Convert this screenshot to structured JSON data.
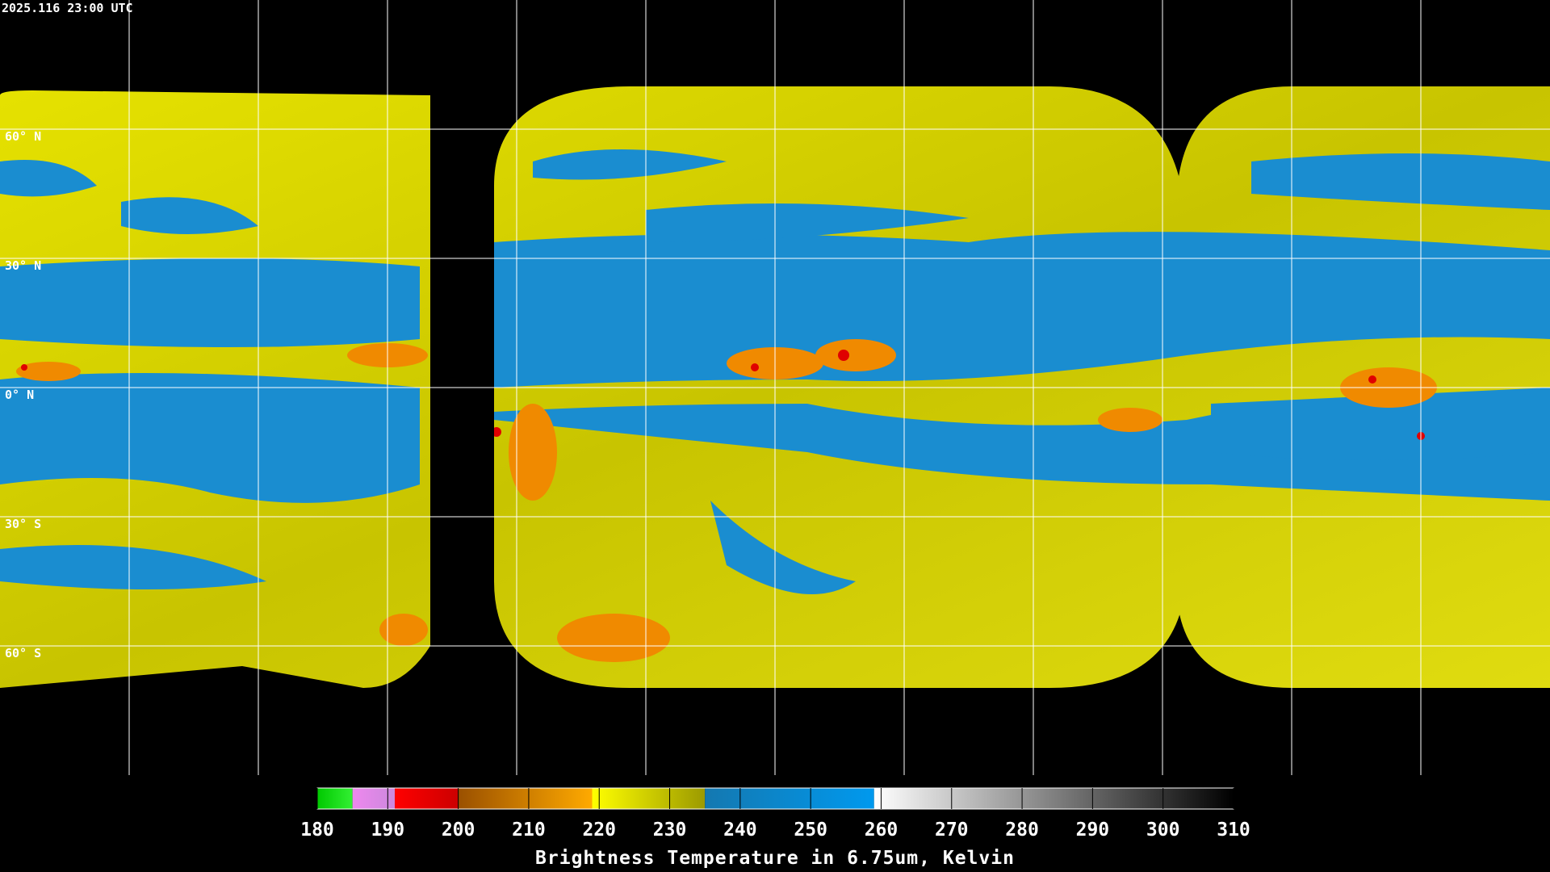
{
  "title": "2025.116 23:00 UTC",
  "latitude_labels": [
    "60° N",
    "30° N",
    "0° N",
    "30° S",
    "60° S"
  ],
  "colorbar": {
    "label": "Brightness Temperature in 6.75um, Kelvin",
    "range": [
      180,
      310
    ],
    "ticks": [
      180,
      190,
      200,
      210,
      220,
      230,
      240,
      250,
      260,
      270,
      280,
      290,
      300,
      310
    ],
    "segments": [
      {
        "from": 180,
        "to": 185,
        "colors": [
          "#00c800",
          "#33f033"
        ]
      },
      {
        "from": 185,
        "to": 191,
        "colors": [
          "#ee88ee",
          "#cc88dd"
        ]
      },
      {
        "from": 191,
        "to": 200,
        "colors": [
          "#ff0000",
          "#cc0000"
        ]
      },
      {
        "from": 200,
        "to": 219,
        "colors": [
          "#9a5000",
          "#ffaa00"
        ]
      },
      {
        "from": 219,
        "to": 235,
        "colors": [
          "#ffff00",
          "#9c9a00"
        ]
      },
      {
        "from": 235,
        "to": 259,
        "colors": [
          "#1478b0",
          "#0099ee"
        ]
      },
      {
        "from": 259,
        "to": 310,
        "colors": [
          "#ffffff",
          "#000000"
        ]
      }
    ]
  }
}
